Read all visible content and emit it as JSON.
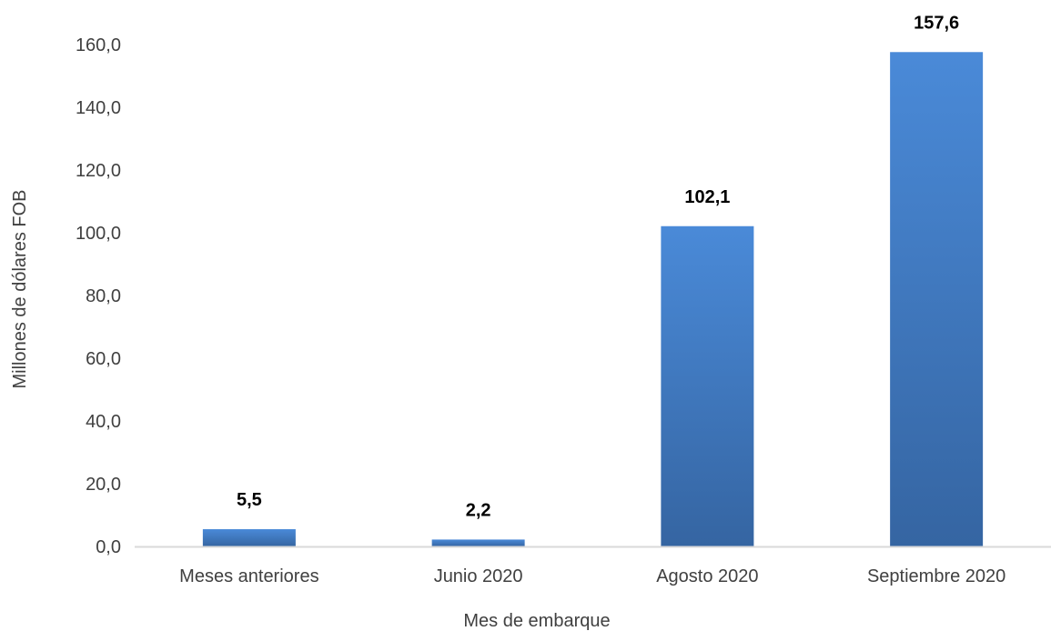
{
  "chart_data": {
    "type": "bar",
    "categories": [
      "Meses anteriores",
      "Junio 2020",
      "Agosto 2020",
      "Septiembre 2020"
    ],
    "values": [
      5.5,
      2.2,
      102.1,
      157.6
    ],
    "data_labels": [
      "5,5",
      "2,2",
      "102,1",
      "157,6"
    ],
    "title": "",
    "xlabel": "Mes de embarque",
    "ylabel": "Millones de dólares FOB",
    "ylim": [
      0,
      160
    ],
    "yticks": [
      0,
      20,
      40,
      60,
      80,
      100,
      120,
      140,
      160
    ],
    "ytick_labels": [
      "0,0",
      "20,0",
      "40,0",
      "60,0",
      "80,0",
      "100,0",
      "120,0",
      "140,0",
      "160,0"
    ],
    "grid": false,
    "legend": "none",
    "bar_color_top": "#4a8ad8",
    "bar_color_bottom": "#3565a2",
    "axis_color": "#d9d9d9"
  }
}
